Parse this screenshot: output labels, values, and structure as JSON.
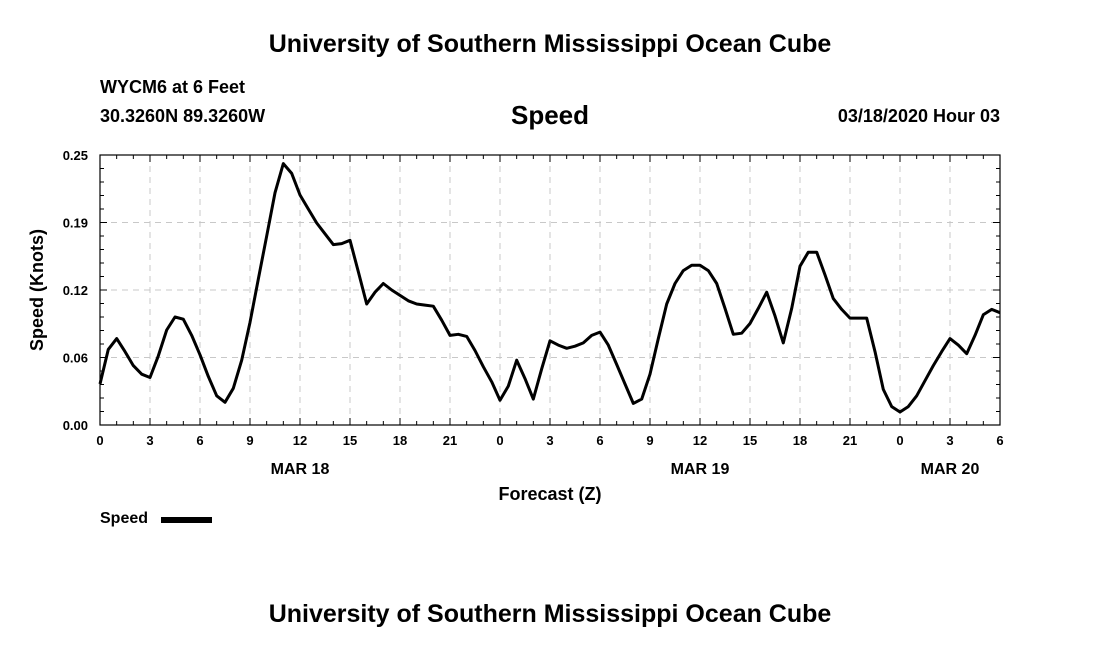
{
  "header": {
    "title": "University of Southern Mississippi Ocean Cube",
    "station_line": "WYCM6 at 6 Feet",
    "coords_line": "30.3260N 89.3260W",
    "chart_title": "Speed",
    "datetime": "03/18/2020 Hour 03"
  },
  "footer": {
    "title": "University of Southern Mississippi Ocean Cube"
  },
  "legend": {
    "label": "Speed",
    "color": "#000000"
  },
  "chart_data": {
    "type": "line",
    "title": "Speed",
    "xlabel": "Forecast (Z)",
    "ylabel": "Speed (Knots)",
    "ylim": [
      0,
      0.25
    ],
    "xlim": [
      0,
      54
    ],
    "x_unit": "hours since 00Z Mar 18",
    "yticks": [
      "0.00",
      "0.06",
      "0.12",
      "0.19",
      "0.25"
    ],
    "ytick_values": [
      0,
      0.0625,
      0.125,
      0.1875,
      0.25
    ],
    "xtick_labels": [
      "0",
      "3",
      "6",
      "9",
      "12",
      "15",
      "18",
      "21",
      "0",
      "3",
      "6",
      "9",
      "12",
      "15",
      "18",
      "21",
      "0",
      "3",
      "6"
    ],
    "date_labels": [
      {
        "label": "MAR 18",
        "x": 12
      },
      {
        "label": "MAR 19",
        "x": 36
      },
      {
        "label": "MAR 20",
        "x": 51
      }
    ],
    "grid": true,
    "legend_position": "bottom-left",
    "series": [
      {
        "name": "Speed",
        "color": "#000000",
        "x": [
          0,
          0.5,
          1,
          1.5,
          2,
          2.5,
          3,
          3.5,
          4,
          4.5,
          5,
          5.5,
          6,
          6.5,
          7,
          7.5,
          8,
          8.5,
          9,
          9.5,
          10,
          10.5,
          11,
          11.5,
          12,
          12.5,
          13,
          13.5,
          14,
          14.5,
          15,
          15.5,
          16,
          16.5,
          17,
          17.5,
          18,
          18.5,
          19,
          19.5,
          20,
          20.5,
          21,
          21.5,
          22,
          22.5,
          23,
          23.5,
          24,
          24.5,
          25,
          25.5,
          26,
          26.5,
          27,
          27.5,
          28,
          28.5,
          29,
          29.5,
          30,
          30.5,
          31,
          31.5,
          32,
          32.5,
          33,
          33.5,
          34,
          34.5,
          35,
          35.5,
          36,
          36.5,
          37,
          37.5,
          38,
          38.5,
          39,
          39.5,
          40,
          40.5,
          41,
          41.5,
          42,
          42.5,
          43,
          43.5,
          44,
          44.5,
          45,
          45.5,
          46,
          46.5,
          47,
          47.5,
          48,
          48.5,
          49,
          49.5,
          50,
          50.5,
          51,
          51.5,
          52,
          52.5,
          53,
          53.5,
          54
        ],
        "values": [
          0.038,
          0.07,
          0.08,
          0.068,
          0.055,
          0.047,
          0.044,
          0.064,
          0.088,
          0.1,
          0.098,
          0.083,
          0.065,
          0.045,
          0.027,
          0.021,
          0.034,
          0.06,
          0.095,
          0.135,
          0.175,
          0.215,
          0.242,
          0.233,
          0.213,
          0.2,
          0.187,
          0.177,
          0.167,
          0.168,
          0.171,
          0.142,
          0.112,
          0.123,
          0.131,
          0.125,
          0.12,
          0.115,
          0.112,
          0.111,
          0.11,
          0.097,
          0.083,
          0.084,
          0.082,
          0.069,
          0.054,
          0.04,
          0.023,
          0.036,
          0.06,
          0.043,
          0.024,
          0.052,
          0.078,
          0.074,
          0.071,
          0.073,
          0.076,
          0.083,
          0.086,
          0.074,
          0.056,
          0.038,
          0.02,
          0.024,
          0.047,
          0.08,
          0.112,
          0.131,
          0.143,
          0.148,
          0.148,
          0.143,
          0.131,
          0.108,
          0.084,
          0.085,
          0.094,
          0.108,
          0.123,
          0.101,
          0.076,
          0.108,
          0.147,
          0.16,
          0.16,
          0.139,
          0.117,
          0.107,
          0.099,
          0.099,
          0.099,
          0.068,
          0.033,
          0.017,
          0.012,
          0.017,
          0.027,
          0.041,
          0.055,
          0.068,
          0.08,
          0.074,
          0.066,
          0.083,
          0.102,
          0.107,
          0.104
        ]
      }
    ]
  }
}
